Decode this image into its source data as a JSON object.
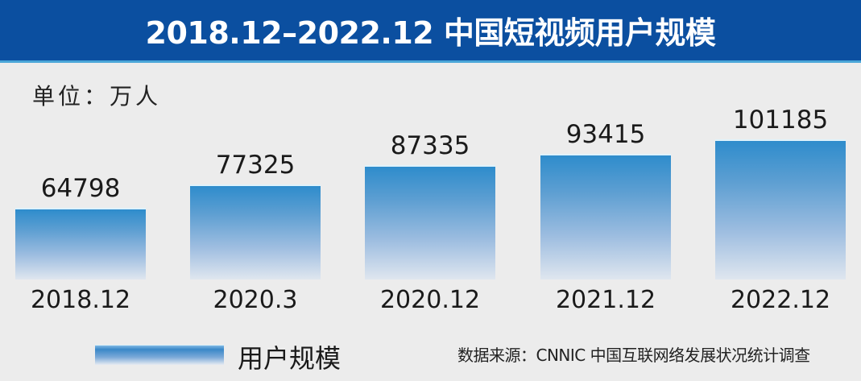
{
  "header": {
    "title": "2018.12–2022.12 中国短视频用户规模",
    "background": "#0b4fa0"
  },
  "unit_label": "单位：万人",
  "legend": {
    "label": "用户规模"
  },
  "source": "数据来源：CNNIC 中国互联网络发展状况统计调查",
  "chart_data": {
    "type": "bar",
    "title": "2018.12–2022.12 中国短视频用户规模",
    "xlabel": "",
    "ylabel": "单位：万人",
    "categories": [
      "2018.12",
      "2020.3",
      "2020.12",
      "2021.12",
      "2022.12"
    ],
    "values": [
      64798,
      77325,
      87335,
      93415,
      101185
    ],
    "series": [
      {
        "name": "用户规模",
        "values": [
          64798,
          77325,
          87335,
          93415,
          101185
        ],
        "color": "#2e8ccc"
      }
    ],
    "data_labels": [
      "64798",
      "77325",
      "87335",
      "93415",
      "101185"
    ],
    "grid": false,
    "legend_position": "bottom-left",
    "source": "数据来源：CNNIC 中国互联网络发展状况统计调查"
  }
}
